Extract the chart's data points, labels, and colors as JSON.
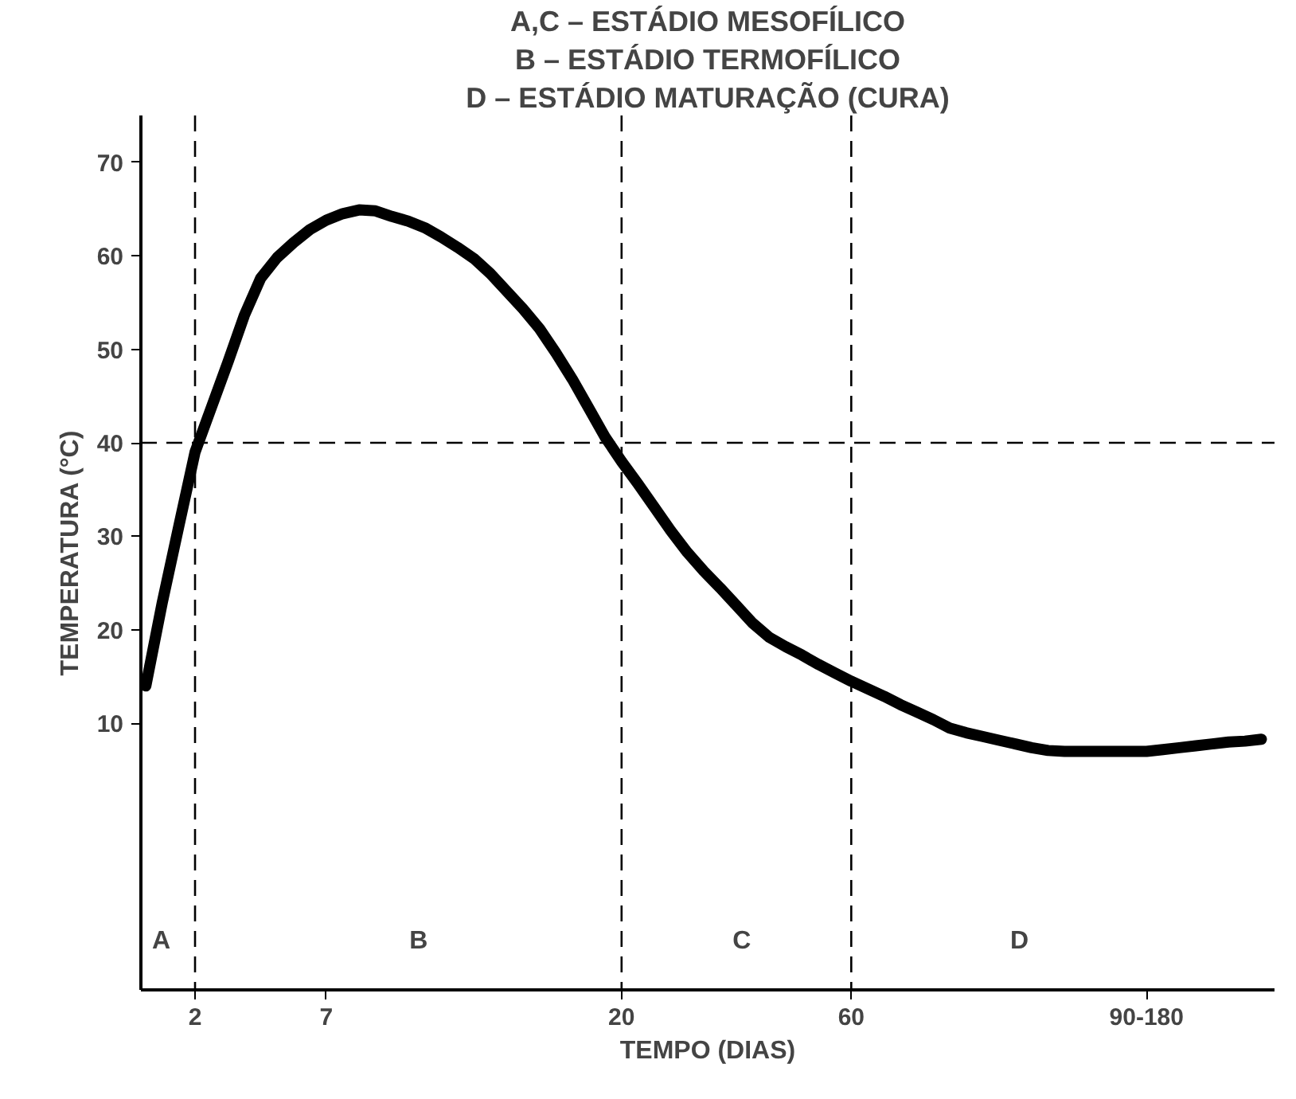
{
  "chart_data": {
    "type": "line",
    "xlabel": "TEMPO (DIAS)",
    "ylabel": "TEMPERATURA (°C)",
    "annotations": [
      "A,C – ESTÁDIO MESOFÍLICO",
      "B – ESTÁDIO TERMOFÍLICO",
      "D – ESTÁDIO MATURAÇÃO (CURA)",
      "A",
      "B",
      "C",
      "D"
    ],
    "categories": [
      null,
      null,
      null,
      "2",
      null,
      null,
      null,
      null,
      null,
      null,
      null,
      "7",
      null,
      null,
      null,
      null,
      null,
      null,
      null,
      null,
      null,
      null,
      null,
      null,
      null,
      null,
      null,
      null,
      null,
      "20",
      null,
      null,
      null,
      null,
      null,
      null,
      null,
      null,
      null,
      null,
      null,
      null,
      null,
      "60",
      null,
      null,
      null,
      null,
      null,
      null,
      null,
      null,
      null,
      null,
      null,
      null,
      null,
      null,
      null,
      null,
      null,
      "90-180",
      null,
      null,
      null,
      null,
      null,
      null,
      null
    ],
    "ylim": [
      -18.5,
      75
    ],
    "yticks": [
      10,
      20,
      30,
      40,
      50,
      60,
      70
    ],
    "series": [
      {
        "color": "#000000",
        "values": [
          14,
          22.9,
          31,
          39,
          43.8,
          48.6,
          53.6,
          57.6,
          59.8,
          61.4,
          62.8,
          63.8,
          64.5,
          64.9,
          64.8,
          64.2,
          63.7,
          63,
          62,
          60.9,
          59.7,
          58.1,
          56.2,
          54.3,
          52.2,
          49.6,
          46.8,
          43.7,
          40.6,
          38,
          35.6,
          33.1,
          30.6,
          28.3,
          26.3,
          24.5,
          22.6,
          20.7,
          19.2,
          18.2,
          17.3,
          16.3,
          15.4,
          14.5,
          13.7,
          12.9,
          12,
          11.2,
          10.4,
          9.5,
          9,
          8.6,
          8.2,
          7.8,
          7.4,
          7.1,
          7,
          7,
          7,
          7,
          7,
          7,
          7.2,
          7.4,
          7.6,
          7.8,
          8,
          8.1,
          8.3
        ]
      }
    ],
    "ref_lines": [
      {
        "axis": "x",
        "value": "2",
        "line_style": "dashed"
      },
      {
        "axis": "x",
        "value": "20",
        "line_style": "dashed"
      },
      {
        "axis": "x",
        "value": "60",
        "line_style": "dashed"
      },
      {
        "axis": "y",
        "value": 40,
        "line_style": "dashed"
      }
    ],
    "grid": false
  }
}
